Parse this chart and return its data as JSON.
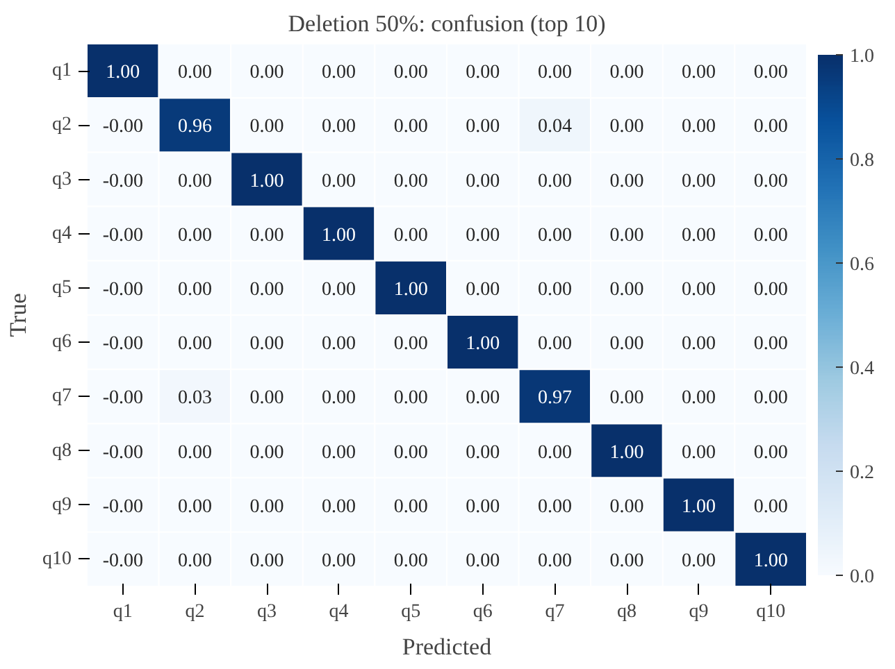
{
  "chart_data": {
    "type": "heatmap",
    "title": "Deletion 50%: confusion (top 10)",
    "xlabel": "Predicted",
    "ylabel": "True",
    "categories": [
      "q1",
      "q2",
      "q3",
      "q4",
      "q5",
      "q6",
      "q7",
      "q8",
      "q9",
      "q10"
    ],
    "y_categories": [
      "q1",
      "q2",
      "q3",
      "q4",
      "q5",
      "q6",
      "q7",
      "q8",
      "q9",
      "q10"
    ],
    "cells": [
      [
        1.0,
        0,
        0,
        0,
        0,
        0,
        0,
        0,
        0,
        0
      ],
      [
        0,
        0.96,
        0,
        0,
        0,
        0,
        0.04,
        0,
        0,
        0
      ],
      [
        0,
        0,
        1.0,
        0,
        0,
        0,
        0,
        0,
        0,
        0
      ],
      [
        0,
        0,
        0,
        1.0,
        0,
        0,
        0,
        0,
        0,
        0
      ],
      [
        0,
        0,
        0,
        0,
        1.0,
        0,
        0,
        0,
        0,
        0
      ],
      [
        0,
        0,
        0,
        0,
        0,
        1.0,
        0,
        0,
        0,
        0
      ],
      [
        0,
        0.03,
        0,
        0,
        0,
        0,
        0.97,
        0,
        0,
        0
      ],
      [
        0,
        0,
        0,
        0,
        0,
        0,
        0,
        1.0,
        0,
        0
      ],
      [
        0,
        0,
        0,
        0,
        0,
        0,
        0,
        0,
        1.0,
        0
      ],
      [
        0,
        0,
        0,
        0,
        0,
        0,
        0,
        0,
        0,
        1.0
      ]
    ],
    "cell_labels": [
      [
        "1.00",
        "0.00",
        "0.00",
        "0.00",
        "0.00",
        "0.00",
        "0.00",
        "0.00",
        "0.00",
        "0.00"
      ],
      [
        "-0.00",
        "0.96",
        "0.00",
        "0.00",
        "0.00",
        "0.00",
        "0.04",
        "0.00",
        "0.00",
        "0.00"
      ],
      [
        "-0.00",
        "0.00",
        "1.00",
        "0.00",
        "0.00",
        "0.00",
        "0.00",
        "0.00",
        "0.00",
        "0.00"
      ],
      [
        "-0.00",
        "0.00",
        "0.00",
        "1.00",
        "0.00",
        "0.00",
        "0.00",
        "0.00",
        "0.00",
        "0.00"
      ],
      [
        "-0.00",
        "0.00",
        "0.00",
        "0.00",
        "1.00",
        "0.00",
        "0.00",
        "0.00",
        "0.00",
        "0.00"
      ],
      [
        "-0.00",
        "0.00",
        "0.00",
        "0.00",
        "0.00",
        "1.00",
        "0.00",
        "0.00",
        "0.00",
        "0.00"
      ],
      [
        "-0.00",
        "0.03",
        "0.00",
        "0.00",
        "0.00",
        "0.00",
        "0.97",
        "0.00",
        "0.00",
        "0.00"
      ],
      [
        "-0.00",
        "0.00",
        "0.00",
        "0.00",
        "0.00",
        "0.00",
        "0.00",
        "1.00",
        "0.00",
        "0.00"
      ],
      [
        "-0.00",
        "0.00",
        "0.00",
        "0.00",
        "0.00",
        "0.00",
        "0.00",
        "0.00",
        "1.00",
        "0.00"
      ],
      [
        "-0.00",
        "0.00",
        "0.00",
        "0.00",
        "0.00",
        "0.00",
        "0.00",
        "0.00",
        "0.00",
        "1.00"
      ]
    ],
    "clim": [
      0,
      1
    ],
    "cticks": [
      {
        "value": 0,
        "label": "0.0"
      },
      {
        "value": 0.2,
        "label": "0.2"
      },
      {
        "value": 0.4,
        "label": "0.4"
      },
      {
        "value": 0.6,
        "label": "0.6"
      },
      {
        "value": 0.8,
        "label": "0.8"
      },
      {
        "value": 1,
        "label": "1.0"
      }
    ]
  }
}
